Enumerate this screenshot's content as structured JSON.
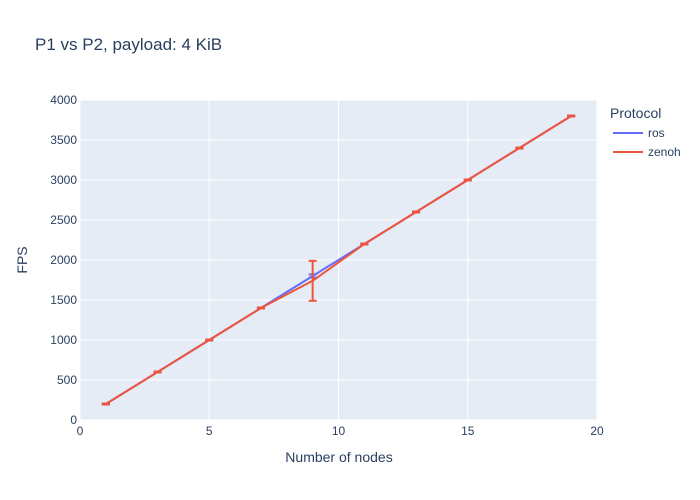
{
  "chart_data": {
    "type": "line",
    "title": "P1 vs P2, payload: 4 KiB",
    "xlabel": "Number of nodes",
    "ylabel": "FPS",
    "xlim": [
      0,
      20
    ],
    "ylim": [
      0,
      4000
    ],
    "x_ticks": [
      0,
      5,
      10,
      15,
      20
    ],
    "y_ticks": [
      0,
      500,
      1000,
      1500,
      2000,
      2500,
      3000,
      3500,
      4000
    ],
    "grid": true,
    "legend": {
      "title": "Protocol",
      "position": "right"
    },
    "series": [
      {
        "name": "ros",
        "color": "#636efa",
        "x": [
          1,
          3,
          5,
          7,
          9,
          11,
          13,
          15,
          17,
          19
        ],
        "y": [
          200,
          600,
          1000,
          1400,
          1800,
          2200,
          2600,
          3000,
          3400,
          3800
        ],
        "error": [
          5,
          5,
          5,
          5,
          20,
          5,
          5,
          5,
          5,
          5
        ]
      },
      {
        "name": "zenoh",
        "color": "#ef553b",
        "x": [
          1,
          3,
          5,
          7,
          9,
          11,
          13,
          15,
          17,
          19
        ],
        "y": [
          200,
          600,
          1000,
          1400,
          1740,
          2200,
          2600,
          3000,
          3400,
          3800
        ],
        "error": [
          5,
          5,
          5,
          5,
          250,
          5,
          5,
          5,
          5,
          5
        ]
      }
    ]
  }
}
